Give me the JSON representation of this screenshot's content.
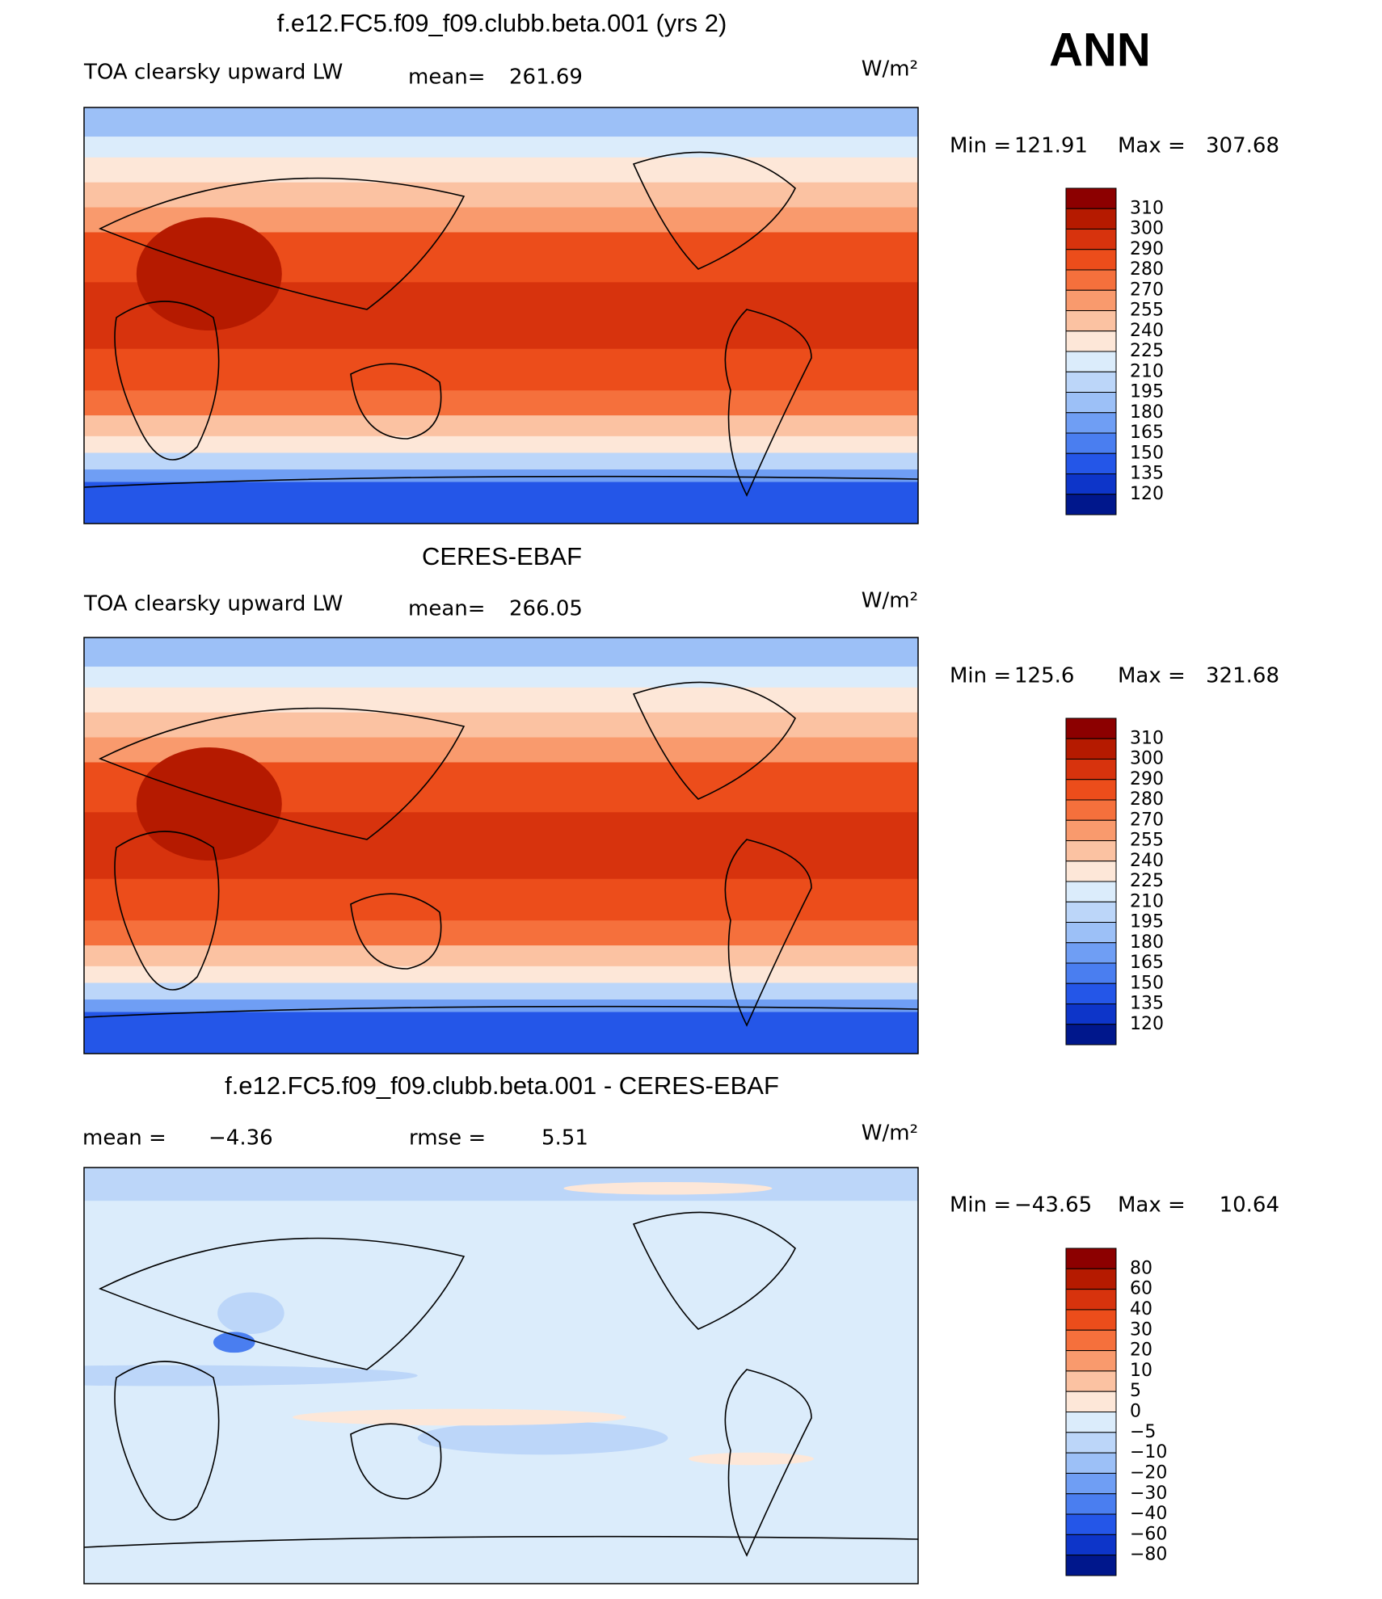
{
  "figure_label": "ANN",
  "panels": [
    {
      "title": "f.e12.FC5.f09_f09.clubb.beta.001 (yrs 2)",
      "variable": "TOA clearsky upward LW",
      "mean_label": "mean=",
      "mean": 261.69,
      "units": "W/m²",
      "min_label": "Min =",
      "min": 121.91,
      "max_label": "Max =",
      "max": 307.68,
      "colorbar": {
        "labels": [
          310,
          300,
          290,
          280,
          270,
          255,
          240,
          225,
          210,
          195,
          180,
          165,
          150,
          135,
          120
        ],
        "colors": [
          "#8c0000",
          "#b51a00",
          "#d7330d",
          "#ec4d1b",
          "#f5703c",
          "#f99a6d",
          "#fbc2a2",
          "#fde7d8",
          "#dbecfb",
          "#bcd6f9",
          "#9cc0f7",
          "#6f9ef4",
          "#4a7ef0",
          "#2456e8",
          "#0d35c9",
          "#00178c"
        ]
      }
    },
    {
      "title": "CERES-EBAF",
      "variable": "TOA clearsky upward LW",
      "mean_label": "mean=",
      "mean": 266.05,
      "units": "W/m²",
      "min_label": "Min =",
      "min": 125.6,
      "min_label_text": "125.60",
      "max_label": "Max =",
      "max": 321.68,
      "colorbar": {
        "labels": [
          310,
          300,
          290,
          280,
          270,
          255,
          240,
          225,
          210,
          195,
          180,
          165,
          150,
          135,
          120
        ],
        "colors": [
          "#8c0000",
          "#b51a00",
          "#d7330d",
          "#ec4d1b",
          "#f5703c",
          "#f99a6d",
          "#fbc2a2",
          "#fde7d8",
          "#dbecfb",
          "#bcd6f9",
          "#9cc0f7",
          "#6f9ef4",
          "#4a7ef0",
          "#2456e8",
          "#0d35c9",
          "#00178c"
        ]
      }
    },
    {
      "title": "f.e12.FC5.f09_f09.clubb.beta.001 - CERES-EBAF",
      "mean_label": "mean =",
      "mean": "−4.36",
      "rmse_label": "rmse =",
      "rmse": 5.51,
      "units": "W/m²",
      "min_label": "Min =",
      "min": "−43.65",
      "max_label": "Max =",
      "max": 10.64,
      "colorbar": {
        "labels": [
          80,
          60,
          40,
          30,
          20,
          10,
          5,
          0,
          "−5",
          "−10",
          "−20",
          "−30",
          "−40",
          "−60",
          "−80"
        ],
        "colors": [
          "#8c0000",
          "#b51a00",
          "#d7330d",
          "#ec4d1b",
          "#f5703c",
          "#f99a6d",
          "#fbc2a2",
          "#fde7d8",
          "#dbecfb",
          "#bcd6f9",
          "#9cc0f7",
          "#6f9ef4",
          "#4a7ef0",
          "#2456e8",
          "#0d35c9",
          "#00178c"
        ]
      }
    }
  ]
}
